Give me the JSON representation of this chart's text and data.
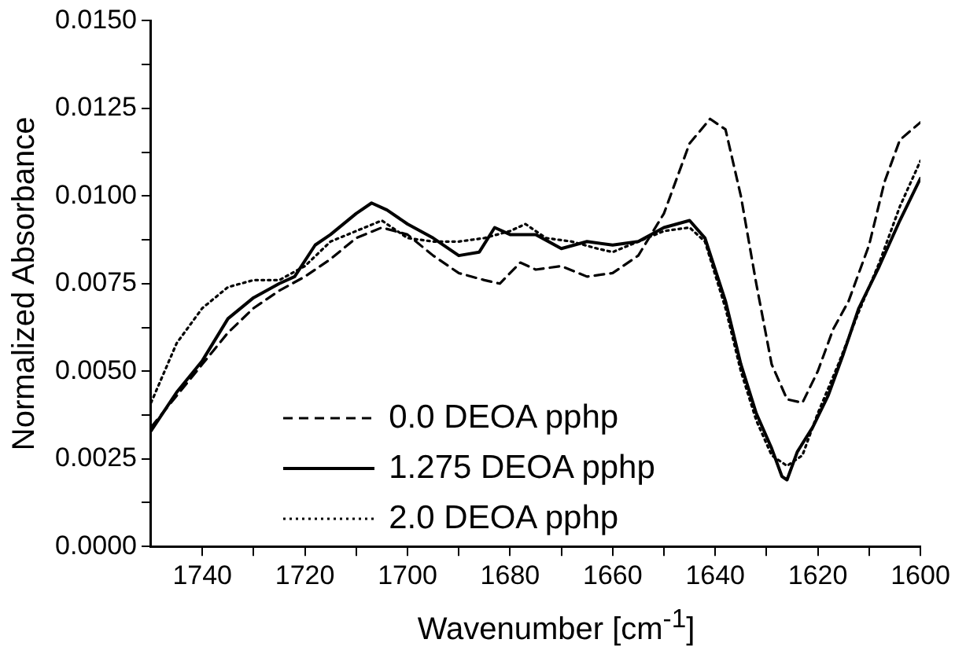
{
  "chart_data": {
    "type": "line",
    "xlabel": "Wavenumber [cm$^{-1}$]",
    "ylabel": "Normalized Absorbance",
    "xlim": [
      1750,
      1600
    ],
    "ylim": [
      0,
      0.015
    ],
    "xticks": [
      {
        "value": 1740,
        "label": "1740"
      },
      {
        "value": 1730,
        "label": null
      },
      {
        "value": 1720,
        "label": "1720"
      },
      {
        "value": 1710,
        "label": null
      },
      {
        "value": 1700,
        "label": "1700"
      },
      {
        "value": 1690,
        "label": null
      },
      {
        "value": 1680,
        "label": "1680"
      },
      {
        "value": 1670,
        "label": null
      },
      {
        "value": 1660,
        "label": "1660"
      },
      {
        "value": 1650,
        "label": null
      },
      {
        "value": 1640,
        "label": "1640"
      },
      {
        "value": 1630,
        "label": null
      },
      {
        "value": 1620,
        "label": "1620"
      },
      {
        "value": 1610,
        "label": null
      },
      {
        "value": 1600,
        "label": "1600"
      }
    ],
    "yticks": [
      {
        "value": 0,
        "label": "0.0000"
      },
      {
        "value": 0.00125,
        "label": null
      },
      {
        "value": 0.0025,
        "label": "0.0025"
      },
      {
        "value": 0.00375,
        "label": null
      },
      {
        "value": 0.005,
        "label": "0.0050"
      },
      {
        "value": 0.00625,
        "label": null
      },
      {
        "value": 0.0075,
        "label": "0.0075"
      },
      {
        "value": 0.00875,
        "label": null
      },
      {
        "value": 0.01,
        "label": "0.0100"
      },
      {
        "value": 0.01125,
        "label": null
      },
      {
        "value": 0.0125,
        "label": "0.0125"
      },
      {
        "value": 0.01375,
        "label": null
      },
      {
        "value": 0.015,
        "label": "0.0150"
      }
    ],
    "grid": false,
    "legend": "bottom left",
    "marker": "none",
    "series": [
      {
        "name": "0.0 DEOA pphp",
        "color": "#000000",
        "line_style": "dashed",
        "x": [
          1750,
          1745,
          1740,
          1735,
          1730,
          1725,
          1720,
          1715,
          1710,
          1705,
          1700,
          1695,
          1690,
          1685,
          1682,
          1678,
          1675,
          1670,
          1665,
          1660,
          1655,
          1650,
          1645,
          1641,
          1638,
          1635,
          1632,
          1629,
          1626,
          1623,
          1620,
          1617,
          1614,
          1610,
          1607,
          1604,
          1600
        ],
        "values": [
          0.0034,
          0.0043,
          0.0052,
          0.0061,
          0.0068,
          0.0073,
          0.0077,
          0.0082,
          0.0088,
          0.0091,
          0.0089,
          0.0083,
          0.0078,
          0.0076,
          0.0075,
          0.0081,
          0.0079,
          0.008,
          0.0077,
          0.0078,
          0.0083,
          0.0095,
          0.0115,
          0.0122,
          0.0119,
          0.01,
          0.0075,
          0.0052,
          0.0042,
          0.0041,
          0.005,
          0.0062,
          0.007,
          0.0086,
          0.0104,
          0.0116,
          0.0121
        ]
      },
      {
        "name": "1.275 DEOA pphp",
        "color": "#000000",
        "line_style": "solid",
        "x": [
          1750,
          1745,
          1740,
          1735,
          1730,
          1725,
          1722,
          1718,
          1715,
          1710,
          1707,
          1704,
          1700,
          1695,
          1690,
          1686,
          1683,
          1680,
          1675,
          1670,
          1665,
          1660,
          1655,
          1650,
          1645,
          1642,
          1638,
          1635,
          1632,
          1629,
          1627,
          1626,
          1624,
          1621,
          1618,
          1615,
          1612,
          1608,
          1604,
          1600
        ],
        "values": [
          0.0033,
          0.0044,
          0.0053,
          0.0065,
          0.0071,
          0.0075,
          0.0077,
          0.0086,
          0.0089,
          0.0095,
          0.0098,
          0.0096,
          0.0092,
          0.0088,
          0.0083,
          0.0084,
          0.0091,
          0.0089,
          0.0089,
          0.0085,
          0.0087,
          0.0086,
          0.0087,
          0.0091,
          0.0093,
          0.0088,
          0.007,
          0.0052,
          0.0038,
          0.0028,
          0.002,
          0.0019,
          0.0027,
          0.0034,
          0.0043,
          0.0055,
          0.0068,
          0.008,
          0.0093,
          0.0105
        ]
      },
      {
        "name": "2.0 DEOA pphp",
        "color": "#000000",
        "line_style": "dotted",
        "x": [
          1750,
          1745,
          1740,
          1735,
          1730,
          1725,
          1720,
          1715,
          1710,
          1705,
          1700,
          1695,
          1690,
          1685,
          1680,
          1677,
          1673,
          1668,
          1663,
          1660,
          1655,
          1650,
          1645,
          1642,
          1638,
          1635,
          1632,
          1629,
          1626,
          1623,
          1620,
          1616,
          1612,
          1608,
          1604,
          1600
        ],
        "values": [
          0.0041,
          0.0058,
          0.0068,
          0.0074,
          0.0076,
          0.0076,
          0.008,
          0.0087,
          0.009,
          0.0093,
          0.0088,
          0.0087,
          0.0087,
          0.0088,
          0.009,
          0.0092,
          0.0088,
          0.0087,
          0.0085,
          0.0084,
          0.0087,
          0.009,
          0.0091,
          0.0087,
          0.0068,
          0.005,
          0.0036,
          0.0026,
          0.0023,
          0.0026,
          0.0038,
          0.0052,
          0.0067,
          0.0081,
          0.0097,
          0.011
        ]
      }
    ]
  }
}
